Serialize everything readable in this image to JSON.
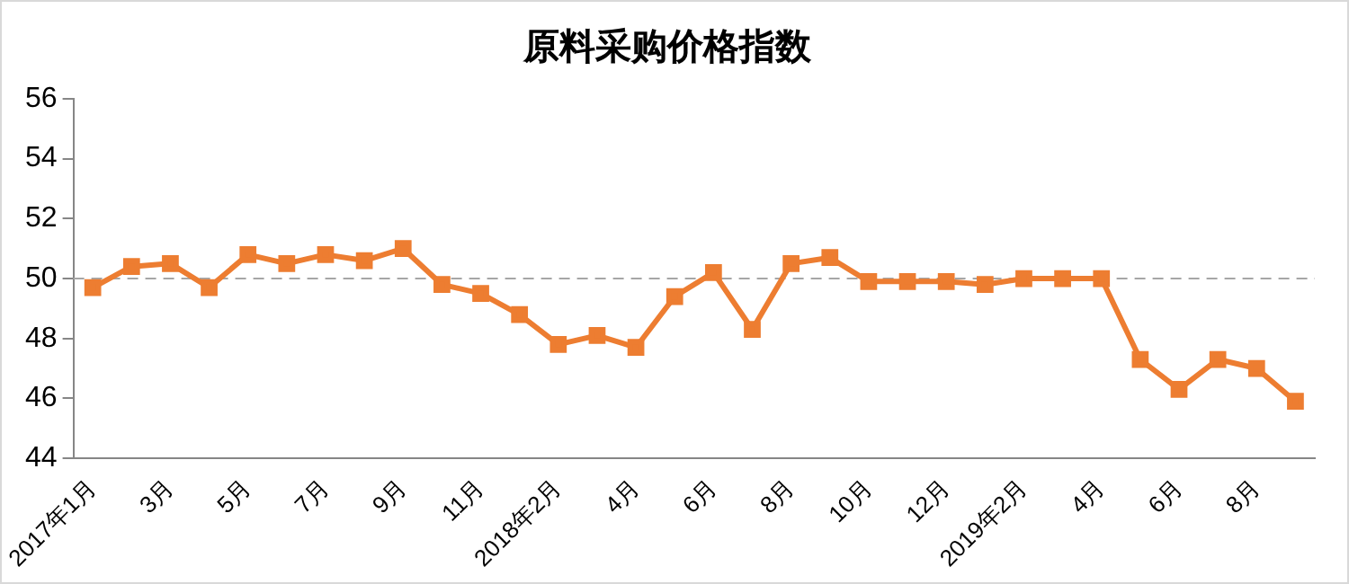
{
  "chart_data": {
    "type": "line",
    "title": "原料采购价格指数",
    "categories": [
      "2017年1月",
      null,
      "3月",
      null,
      "5月",
      null,
      "7月",
      null,
      "9月",
      null,
      "11月",
      null,
      "2018年2月",
      null,
      "4月",
      null,
      "6月",
      null,
      "8月",
      null,
      "10月",
      null,
      "12月",
      null,
      "2019年2月",
      null,
      "4月",
      null,
      "6月",
      null,
      "8月",
      null
    ],
    "series": [
      {
        "color": "#ed7d31",
        "values": [
          49.7,
          50.4,
          50.5,
          49.7,
          50.8,
          50.5,
          50.8,
          50.6,
          51.0,
          49.8,
          49.5,
          48.8,
          47.8,
          48.1,
          47.7,
          49.4,
          50.2,
          48.3,
          50.5,
          50.7,
          49.9,
          49.9,
          49.9,
          49.8,
          50.0,
          50.0,
          50.0,
          47.3,
          46.3,
          47.3,
          47.0,
          45.9
        ]
      }
    ],
    "ylim": [
      44,
      56
    ],
    "yticks": [
      44,
      46,
      48,
      50,
      52,
      54,
      56
    ],
    "grid": false,
    "legend": false,
    "marker": "square",
    "line_style": "solid",
    "ref_lines": [
      {
        "axis": "y",
        "value": 50,
        "color": "#a6a6a6",
        "line_style": "dashed"
      }
    ]
  }
}
